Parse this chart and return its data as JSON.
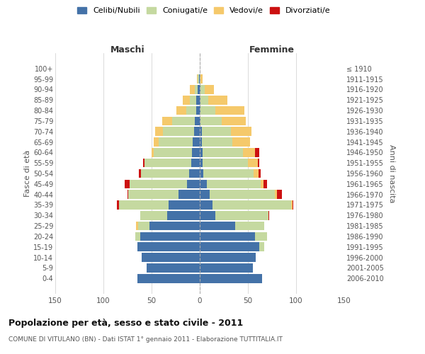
{
  "age_groups": [
    "0-4",
    "5-9",
    "10-14",
    "15-19",
    "20-24",
    "25-29",
    "30-34",
    "35-39",
    "40-44",
    "45-49",
    "50-54",
    "55-59",
    "60-64",
    "65-69",
    "70-74",
    "75-79",
    "80-84",
    "85-89",
    "90-94",
    "95-99",
    "100+"
  ],
  "birth_years": [
    "2006-2010",
    "2001-2005",
    "1996-2000",
    "1991-1995",
    "1986-1990",
    "1981-1985",
    "1976-1980",
    "1971-1975",
    "1966-1970",
    "1961-1965",
    "1956-1960",
    "1951-1955",
    "1946-1950",
    "1941-1945",
    "1936-1940",
    "1931-1935",
    "1926-1930",
    "1921-1925",
    "1916-1920",
    "1911-1915",
    "≤ 1910"
  ],
  "colors": {
    "celibe": "#4472a8",
    "coniugato": "#c5d9a0",
    "vedovo": "#f5c96b",
    "divorziato": "#cc1111"
  },
  "maschi": {
    "celibe": [
      65,
      55,
      60,
      65,
      62,
      52,
      34,
      32,
      22,
      13,
      11,
      9,
      8,
      7,
      6,
      5,
      4,
      4,
      2,
      1,
      0
    ],
    "coniugato": [
      0,
      0,
      0,
      0,
      5,
      12,
      28,
      52,
      52,
      60,
      50,
      48,
      40,
      36,
      32,
      24,
      10,
      6,
      3,
      1,
      0
    ],
    "vedovo": [
      0,
      0,
      0,
      0,
      0,
      2,
      0,
      0,
      0,
      0,
      0,
      0,
      2,
      5,
      8,
      10,
      10,
      8,
      5,
      1,
      0
    ],
    "divorziato": [
      0,
      0,
      0,
      0,
      0,
      0,
      0,
      2,
      1,
      5,
      2,
      2,
      0,
      0,
      0,
      0,
      0,
      0,
      0,
      0,
      0
    ]
  },
  "femmine": {
    "celibe": [
      65,
      55,
      58,
      62,
      57,
      37,
      16,
      13,
      10,
      7,
      4,
      3,
      3,
      2,
      2,
      1,
      1,
      1,
      1,
      0,
      0
    ],
    "coniugato": [
      0,
      0,
      0,
      5,
      13,
      30,
      55,
      82,
      68,
      56,
      52,
      47,
      42,
      32,
      30,
      22,
      15,
      8,
      4,
      1,
      0
    ],
    "vedovo": [
      0,
      0,
      0,
      0,
      0,
      0,
      0,
      1,
      2,
      3,
      5,
      10,
      12,
      18,
      22,
      25,
      30,
      20,
      10,
      2,
      0
    ],
    "divorziato": [
      0,
      0,
      0,
      0,
      0,
      0,
      1,
      1,
      5,
      4,
      2,
      2,
      5,
      0,
      0,
      0,
      0,
      0,
      0,
      0,
      0
    ]
  },
  "title": "Popolazione per età, sesso e stato civile - 2011",
  "subtitle": "COMUNE DI VITULANO (BN) - Dati ISTAT 1° gennaio 2011 - Elaborazione TUTTITALIA.IT",
  "xlabel_left": "Maschi",
  "xlabel_right": "Femmine",
  "ylabel_left": "Fasce di età",
  "ylabel_right": "Anni di nascita",
  "xlim": 150,
  "legend_labels": [
    "Celibi/Nubili",
    "Coniugati/e",
    "Vedovi/e",
    "Divorziati/e"
  ],
  "background_color": "#ffffff"
}
